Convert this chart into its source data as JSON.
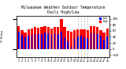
{
  "title": "Milwaukee Weather Outdoor Temperature\nDaily High/Low",
  "title_fontsize": 3.5,
  "background_color": "#ffffff",
  "bar_color_high": "#ff0000",
  "bar_color_low": "#0000ff",
  "legend_high": "High",
  "legend_low": "Low",
  "ylabel_left": "°F Temp",
  "ylabel_right_values": [
    100,
    80,
    60,
    40,
    20,
    0,
    -20
  ],
  "ylim": [
    -28,
    110
  ],
  "categories": [
    "1",
    "2",
    "3",
    "4",
    "5",
    "6",
    "7",
    "8",
    "9",
    "10",
    "11",
    "12",
    "13",
    "14",
    "15",
    "16",
    "17",
    "18",
    "19",
    "20",
    "21",
    "22",
    "23",
    "24",
    "25",
    "26",
    "27",
    "28"
  ],
  "highs": [
    76,
    63,
    55,
    65,
    67,
    72,
    70,
    72,
    76,
    72,
    68,
    74,
    74,
    99,
    72,
    60,
    58,
    62,
    64,
    66,
    64,
    62,
    76,
    76,
    74,
    62,
    54,
    68
  ],
  "lows": [
    56,
    47,
    38,
    44,
    46,
    50,
    50,
    50,
    54,
    52,
    46,
    52,
    50,
    58,
    38,
    26,
    8,
    36,
    40,
    44,
    38,
    36,
    52,
    52,
    50,
    44,
    32,
    40
  ],
  "dashed_cols": [
    18,
    19,
    20,
    21
  ],
  "bar_width": 0.38
}
